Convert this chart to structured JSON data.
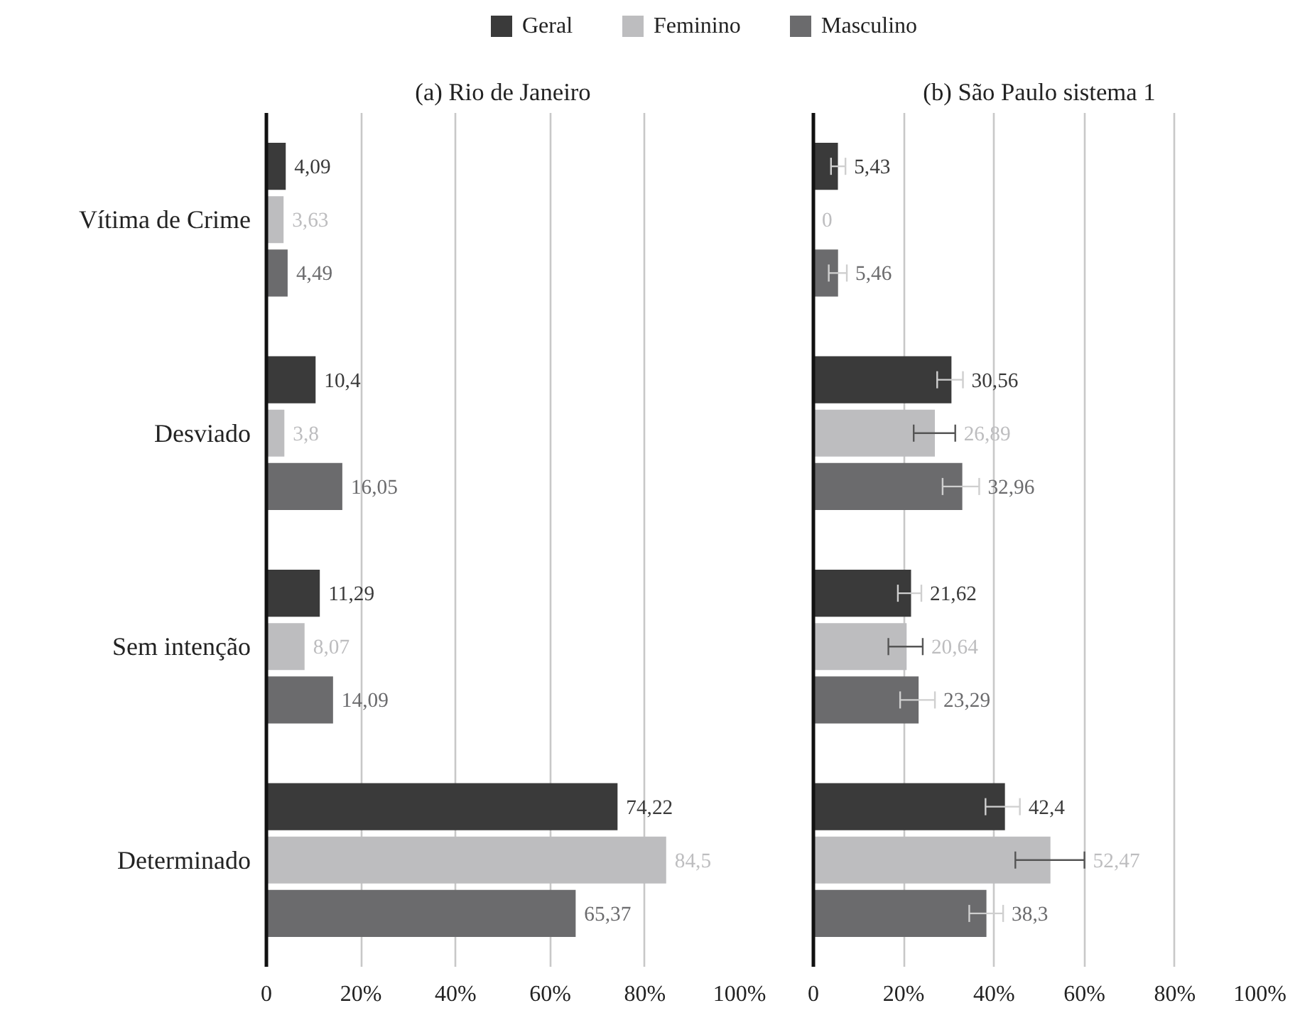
{
  "chart_data": [
    {
      "type": "bar",
      "orientation": "horizontal",
      "title": "(a) Rio de Janeiro",
      "categories": [
        "Vítima de Crime",
        "Desviado",
        "Sem intenção",
        "Determinado"
      ],
      "series": [
        {
          "name": "Geral",
          "color": "#3a3a3a",
          "values": [
            4.09,
            10.4,
            11.29,
            74.22
          ],
          "value_labels": [
            "4,09",
            "10,4",
            "11,29",
            "74,22"
          ]
        },
        {
          "name": "Feminino",
          "color": "#bdbdbf",
          "values": [
            3.63,
            3.8,
            8.07,
            84.5
          ],
          "value_labels": [
            "3,63",
            "3,8",
            "8,07",
            "84,5"
          ]
        },
        {
          "name": "Masculino",
          "color": "#6b6b6d",
          "values": [
            4.49,
            16.05,
            14.09,
            65.37
          ],
          "value_labels": [
            "4,49",
            "16,05",
            "14,09",
            "65,37"
          ]
        }
      ],
      "xlim": [
        0,
        100
      ],
      "xticks": [
        {
          "value": 0,
          "label": "0"
        },
        {
          "value": 20,
          "label": "20%"
        },
        {
          "value": 40,
          "label": "40%"
        },
        {
          "value": 60,
          "label": "60%"
        },
        {
          "value": 80,
          "label": "80%"
        },
        {
          "value": 100,
          "label": "100%"
        }
      ],
      "grid": "x",
      "legend": "top"
    },
    {
      "type": "bar",
      "orientation": "horizontal",
      "title": "(b) São Paulo sistema 1",
      "categories": [
        null,
        null,
        null,
        null
      ],
      "series": [
        {
          "color": "#3a3a3a",
          "values": [
            5.43,
            30.56,
            21.62,
            42.4
          ],
          "value_labels": [
            "5,43",
            "30,56",
            "21,62",
            "42,4"
          ],
          "errors": [
            [
              3.9,
              7.1
            ],
            [
              27.4,
              33.1
            ],
            [
              18.7,
              23.9
            ],
            [
              38.1,
              45.7
            ]
          ]
        },
        {
          "color": "#bdbdbf",
          "values": [
            0,
            26.89,
            20.64,
            52.47
          ],
          "value_labels": [
            "0",
            "26,89",
            "20,64",
            "52,47"
          ],
          "errors": [
            null,
            [
              22.2,
              31.4
            ],
            [
              16.6,
              24.2
            ],
            [
              44.7,
              60
            ]
          ]
        },
        {
          "color": "#6b6b6d",
          "values": [
            5.46,
            32.96,
            23.29,
            38.3
          ],
          "value_labels": [
            "5,46",
            "32,96",
            "23,29",
            "38,3"
          ],
          "errors": [
            [
              3.4,
              7.4
            ],
            [
              28.6,
              36.7
            ],
            [
              19.2,
              26.9
            ],
            [
              34.5,
              42
            ]
          ]
        }
      ],
      "xlim": [
        0,
        100
      ],
      "xticks": [
        {
          "value": 0,
          "label": "0"
        },
        {
          "value": 20,
          "label": "20%"
        },
        {
          "value": 40,
          "label": "40%"
        },
        {
          "value": 60,
          "label": "60%"
        },
        {
          "value": 80,
          "label": "80%"
        },
        {
          "value": 100,
          "label": "100%"
        }
      ],
      "grid": "x",
      "tick_labels": "x"
    }
  ]
}
